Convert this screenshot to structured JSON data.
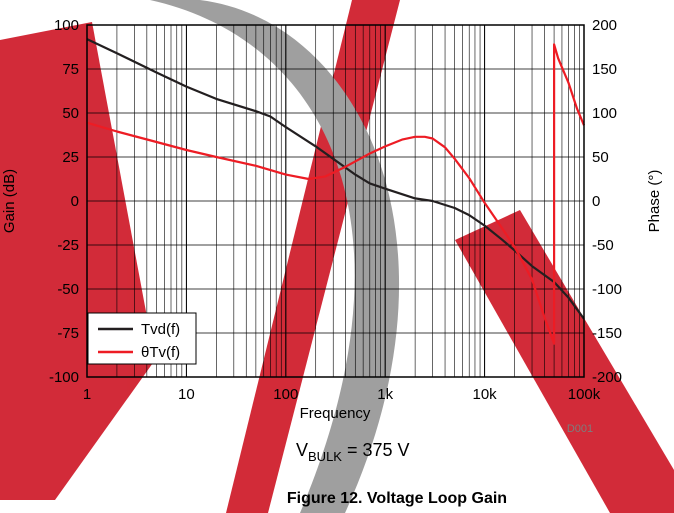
{
  "chart_data": {
    "type": "line",
    "xlabel": "Frequency",
    "xscale": "log",
    "xlim": [
      1,
      100000
    ],
    "x_ticks": [
      "1",
      "10",
      "100",
      "1k",
      "10k",
      "100k"
    ],
    "ylabel_left": "Gain (dB)",
    "ylim_left": [
      -100,
      100
    ],
    "y_ticks_left": [
      "100",
      "75",
      "50",
      "25",
      "0",
      "-25",
      "-50",
      "-75",
      "-100"
    ],
    "ylabel_right": "Phase (°)",
    "ylim_right": [
      -200,
      200
    ],
    "y_ticks_right": [
      "200",
      "150",
      "100",
      "50",
      "0",
      "-50",
      "-100",
      "-150",
      "-200"
    ],
    "grid": true,
    "legend_position": "bottom-left",
    "code": "D001",
    "series": [
      {
        "name": "Tvd(f)",
        "axis": "left",
        "color": "#231f20",
        "x": [
          1,
          2,
          5,
          10,
          20,
          50,
          70,
          100,
          200,
          300,
          500,
          700,
          1000,
          2000,
          3000,
          5000,
          7000,
          10000,
          15000,
          20000,
          30000,
          50000,
          70000,
          100000
        ],
        "values": [
          92,
          84,
          73,
          65,
          58,
          51,
          48,
          42,
          31,
          24,
          15,
          10,
          7,
          1.5,
          0,
          -4,
          -8,
          -14,
          -22,
          -28,
          -37,
          -46,
          -55,
          -67
        ]
      },
      {
        "name": "θTv(f)",
        "axis": "right",
        "color": "#ed1c24",
        "x": [
          1,
          2,
          5,
          10,
          20,
          50,
          100,
          170,
          250,
          400,
          700,
          1000,
          1500,
          2000,
          2500,
          3000,
          4000,
          5000,
          7000,
          10000,
          15000,
          20000,
          30000,
          40000,
          50000,
          50000,
          55000,
          70000,
          85000,
          100000
        ],
        "values": [
          89,
          79,
          67,
          58,
          50,
          40,
          30,
          25,
          28,
          39,
          54,
          62,
          70,
          73,
          73,
          71,
          61,
          48,
          26,
          -2,
          -31,
          -52,
          -89,
          -132,
          -162,
          178,
          162,
          134,
          105,
          86
        ]
      }
    ]
  },
  "annotations": {
    "condition": "VBULK = 375 V",
    "condition_parts": {
      "main": "V",
      "sub": "BULK",
      "rest": " = 375 V"
    }
  },
  "caption": "Figure 12. Voltage Loop Gain",
  "watermark_colors": {
    "red": "#d0202e",
    "gray": "#9a9a9a"
  }
}
